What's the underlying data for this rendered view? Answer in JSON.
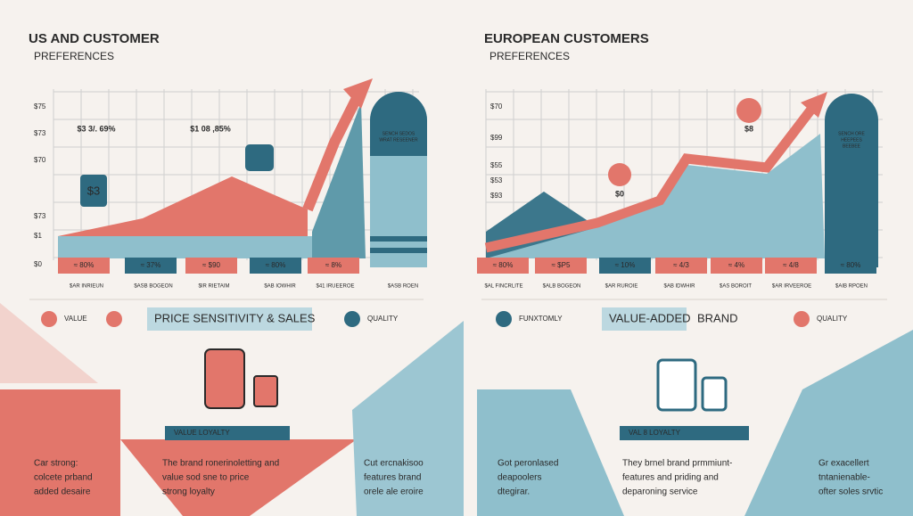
{
  "left": {
    "title": "US AND CUSTOMER",
    "subtitle": "PREFERENCES",
    "y_labels": [
      "$75",
      "$73",
      "$70",
      "$73",
      "$1",
      "$0"
    ],
    "callouts": [
      "$3 3/. 69%",
      "$1 08 ,85%"
    ],
    "price_tag": "$3",
    "card_text": [
      "SENCH SEDOS",
      "WRAT RESEENER"
    ],
    "badges": [
      "≈ 80%",
      "≈ 37%",
      "≈ $90",
      "≈ 80%",
      "≈ 8%"
    ],
    "categories": [
      "$AR INRIEUN",
      "$ASB BOGEON",
      "$IR RIETAIM",
      "$AB IOWHIR",
      "$41 IRUEEROE",
      "$ASB ROEN"
    ],
    "legend": [
      "VALUE",
      "PRICE SENSITIVITY & SALES",
      "QUALITY"
    ],
    "banner": "VALUE LOYALTY",
    "texts": [
      [
        "Car strong:",
        "colcete prband",
        "added desaire"
      ],
      [
        "The brand ronerinoletting and",
        "value sod sne to price",
        "strong loyalty"
      ],
      [
        "Cut ercnakisoo",
        "features brand",
        "orele ale eroire"
      ]
    ]
  },
  "right": {
    "title": "EUROPEAN CUSTOMERS",
    "subtitle": "PREFERENCES",
    "y_labels": [
      "$70",
      "$99",
      "$55",
      "$53",
      "$93"
    ],
    "callouts": [
      "$8",
      "$0"
    ],
    "card_text": [
      "SENCH ORE",
      "HEEPEES",
      "BEEBEE"
    ],
    "badges": [
      "≈ 80%",
      "≈ $P5",
      "≈ 10%",
      "≈ 4/3",
      "≈ 4%",
      "≈ 4/8",
      "≈ 80%"
    ],
    "categories": [
      "$AL FINCRLITE",
      "$ALB BOGEON",
      "$AR RUROIE",
      "$AB IDWHIR",
      "$AS BOROIT",
      "$AR IRVEEROE",
      "$AIB RPOEN"
    ],
    "legend": [
      "FUNXTOMLY",
      "VALUE-ADDED",
      "BRAND",
      "QUALITY"
    ],
    "banner": "VAL 8 LOYALTY",
    "texts": [
      [
        "Got peronlased",
        "deapoolers",
        "dtegirar."
      ],
      [
        "They brnel brand prmmiunt-",
        "features and priding and",
        "deparoning service"
      ],
      [
        "Gr exacellert",
        "tntanienable-",
        "ofter soles srvtic"
      ]
    ]
  }
}
